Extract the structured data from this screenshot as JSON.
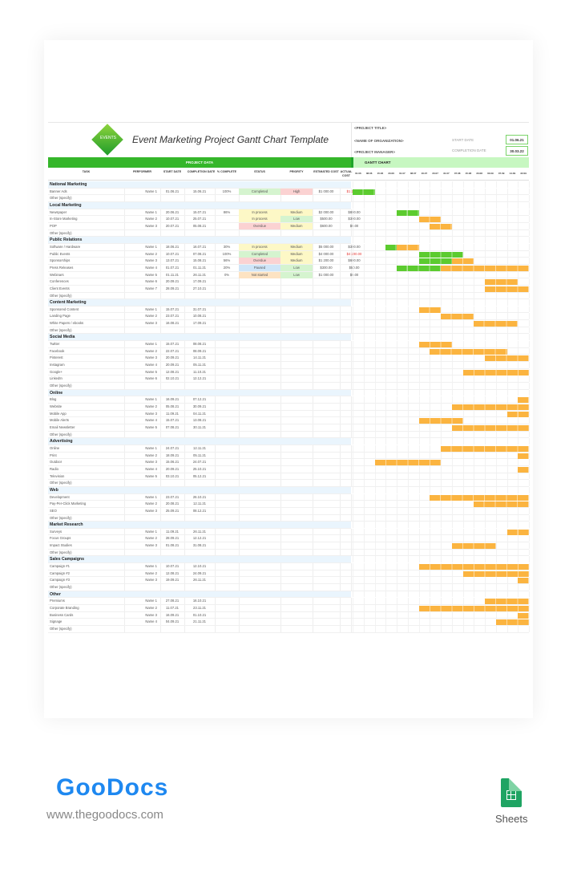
{
  "header": {
    "logo_text": "EVENTS",
    "title": "Event Marketing Project Gantt Chart Template",
    "project_title": "<PROJECT TITLE>",
    "organization": "<NAME OF ORGANIZATION>",
    "project_manager": "<PROJECT MANAGER>",
    "start_date_label": "START DATE",
    "start_date": "01.06.21",
    "completion_date_label": "COMPLETION DATE",
    "completion_date": "30.03.22"
  },
  "bands": {
    "project_data": "PROJECT DATA",
    "gantt_chart": "GANTT CHART"
  },
  "columns": [
    "TASK",
    "PERFORMER",
    "START DATE",
    "COMPLETION DATE",
    "% COMPLETE",
    "STATUS",
    "PRIORITY",
    "ESTIMATED COST",
    "ACTUAL COST"
  ],
  "gantt_dates": [
    "01.06",
    "08.06",
    "15.06",
    "23.06",
    "01.07",
    "08.07",
    "16.07",
    "23.07",
    "31.07",
    "07.08",
    "15.08",
    "23.08",
    "03.09",
    "07.09",
    "14.09",
    "22.09"
  ],
  "colors": {
    "green": "#5ccb2f",
    "orange": "#fbb440",
    "completed": "#d5f4cf",
    "in_process": "#fdf8c6",
    "overdue": "#fbd2d2",
    "paused": "#cfe5f8",
    "not_started": "#fde3c2",
    "high": "#fbd2d2",
    "medium": "#fdf8c6",
    "low": "#d5f4cf",
    "cat_bg": "#eaf5fd",
    "over_budget": "#e53935"
  },
  "rows": [
    {
      "type": "cat",
      "task": "National Marketing"
    },
    {
      "task": "Banner Ads",
      "performer": "Name 1",
      "start": "01.06.21",
      "end": "15.06.21",
      "pct": "100%",
      "status": "Completed",
      "priority": "High",
      "est": "$1 000.00",
      "act": "$1 200.00",
      "act_red": true,
      "bars": [
        [
          0,
          2,
          "green"
        ]
      ]
    },
    {
      "task": "Other (specify)"
    },
    {
      "type": "cat",
      "task": "Local Marketing"
    },
    {
      "task": "Newspaper",
      "performer": "Name 1",
      "start": "20.06.21",
      "end": "15.07.21",
      "pct": "86%",
      "status": "In process",
      "priority": "Medium",
      "est": "$2 000.00",
      "act": "$800.00",
      "bars": [
        [
          4,
          2,
          "green"
        ]
      ]
    },
    {
      "task": "In-Store Marketing",
      "performer": "Name 2",
      "start": "10.07.21",
      "end": "25.07.21",
      "status": "In process",
      "priority": "Low",
      "est": "$500.00",
      "act": "$300.00",
      "bars": [
        [
          6,
          2,
          "orange"
        ]
      ]
    },
    {
      "task": "POP",
      "performer": "Name 3",
      "start": "20.07.21",
      "end": "05.08.21",
      "status": "Overdue",
      "priority": "Medium",
      "est": "$600.00",
      "act": "$0.00",
      "bars": [
        [
          7,
          2,
          "orange"
        ]
      ]
    },
    {
      "task": "Other (specify)"
    },
    {
      "type": "cat",
      "task": "Public Relations"
    },
    {
      "task": "Software / Hardware",
      "performer": "Name 1",
      "start": "18.06.21",
      "end": "16.07.21",
      "pct": "30%",
      "status": "In process",
      "priority": "Medium",
      "est": "$5 000.00",
      "act": "$300.00",
      "bars": [
        [
          3,
          1,
          "green"
        ],
        [
          4,
          2,
          "orange"
        ]
      ]
    },
    {
      "task": "Public Events",
      "performer": "Name 2",
      "start": "10.07.21",
      "end": "07.08.21",
      "pct": "100%",
      "status": "Completed",
      "priority": "Medium",
      "est": "$4 000.00",
      "act": "$4 200.00",
      "act_red": true,
      "bars": [
        [
          6,
          4,
          "green"
        ]
      ]
    },
    {
      "task": "Sponsorships",
      "performer": "Name 3",
      "start": "13.07.21",
      "end": "15.08.21",
      "pct": "56%",
      "status": "Overdue",
      "priority": "Medium",
      "est": "$1 200.00",
      "act": "$600.00",
      "bars": [
        [
          6,
          3,
          "green"
        ],
        [
          9,
          2,
          "orange"
        ]
      ]
    },
    {
      "task": "Press Releases",
      "performer": "Name 4",
      "start": "01.07.21",
      "end": "01.11.21",
      "pct": "20%",
      "status": "Paused",
      "priority": "Low",
      "est": "$300.00",
      "act": "$50.00",
      "bars": [
        [
          4,
          4,
          "green"
        ],
        [
          8,
          8,
          "orange"
        ]
      ]
    },
    {
      "task": "Webinars",
      "performer": "Name 5",
      "start": "01.11.21",
      "end": "26.11.21",
      "pct": "0%",
      "status": "Not started",
      "priority": "Low",
      "est": "$1 000.00",
      "act": "$0.00"
    },
    {
      "task": "Conferences",
      "performer": "Name 6",
      "start": "20.09.21",
      "end": "17.09.21",
      "bars": [
        [
          12,
          3,
          "orange"
        ]
      ]
    },
    {
      "task": "Client Events",
      "performer": "Name 7",
      "start": "28.09.21",
      "end": "27.10.21",
      "bars": [
        [
          12,
          4,
          "orange"
        ]
      ]
    },
    {
      "task": "Other (specify)"
    },
    {
      "type": "cat",
      "task": "Content Marketing"
    },
    {
      "task": "Sponsored Content",
      "performer": "Name 1",
      "start": "15.07.21",
      "end": "31.07.21",
      "bars": [
        [
          6,
          2,
          "orange"
        ]
      ]
    },
    {
      "task": "Landing Page",
      "performer": "Name 2",
      "start": "23.07.21",
      "end": "10.08.21",
      "bars": [
        [
          8,
          3,
          "orange"
        ]
      ]
    },
    {
      "task": "White Papers / ebooks",
      "performer": "Name 3",
      "start": "16.08.21",
      "end": "17.09.21",
      "bars": [
        [
          11,
          4,
          "orange"
        ]
      ]
    },
    {
      "task": "Other (specify)"
    },
    {
      "type": "cat",
      "task": "Social Media"
    },
    {
      "task": "Twitter",
      "performer": "Name 1",
      "start": "15.07.21",
      "end": "08.08.21",
      "bars": [
        [
          6,
          3,
          "orange"
        ]
      ]
    },
    {
      "task": "Facebook",
      "performer": "Name 2",
      "start": "22.07.21",
      "end": "08.09.21",
      "bars": [
        [
          7,
          7,
          "orange"
        ]
      ]
    },
    {
      "task": "Pinterest",
      "performer": "Name 3",
      "start": "20.09.21",
      "end": "14.11.21",
      "bars": [
        [
          12,
          4,
          "orange"
        ]
      ]
    },
    {
      "task": "Instagram",
      "performer": "Name 4",
      "start": "20.09.21",
      "end": "05.11.21"
    },
    {
      "task": "Google+",
      "performer": "Name 5",
      "start": "12.08.21",
      "end": "11.10.21",
      "bars": [
        [
          10,
          6,
          "orange"
        ]
      ]
    },
    {
      "task": "LinkedIn",
      "performer": "Name 6",
      "start": "02.10.21",
      "end": "12.12.21"
    },
    {
      "task": "Other (specify)"
    },
    {
      "type": "cat",
      "task": "Online"
    },
    {
      "task": "Blog",
      "performer": "Name 1",
      "start": "16.09.21",
      "end": "07.12.21",
      "bars": [
        [
          15,
          1,
          "orange"
        ]
      ]
    },
    {
      "task": "Website",
      "performer": "Name 2",
      "start": "05.08.21",
      "end": "30.09.21",
      "bars": [
        [
          9,
          7,
          "orange"
        ]
      ]
    },
    {
      "task": "Mobile App",
      "performer": "Name 3",
      "start": "11.09.21",
      "end": "04.11.21",
      "bars": [
        [
          14,
          2,
          "orange"
        ]
      ]
    },
    {
      "task": "Mobile Alerts",
      "performer": "Name 4",
      "start": "15.07.21",
      "end": "13.08.21",
      "bars": [
        [
          6,
          4,
          "orange"
        ]
      ]
    },
    {
      "task": "Email Newsletter",
      "performer": "Name 5",
      "start": "07.08.21",
      "end": "30.11.21",
      "bars": [
        [
          9,
          7,
          "orange"
        ]
      ]
    },
    {
      "task": "Other (specify)"
    },
    {
      "type": "cat",
      "task": "Advertising"
    },
    {
      "task": "Online",
      "performer": "Name 1",
      "start": "24.07.21",
      "end": "12.11.21",
      "bars": [
        [
          8,
          8,
          "orange"
        ]
      ]
    },
    {
      "task": "Print",
      "performer": "Name 2",
      "start": "18.09.21",
      "end": "05.11.21",
      "bars": [
        [
          15,
          1,
          "orange"
        ]
      ]
    },
    {
      "task": "Outdoor",
      "performer": "Name 3",
      "start": "15.06.21",
      "end": "24.07.21",
      "bars": [
        [
          2,
          6,
          "orange"
        ]
      ]
    },
    {
      "task": "Radio",
      "performer": "Name 4",
      "start": "20.09.21",
      "end": "25.10.21",
      "bars": [
        [
          15,
          1,
          "orange"
        ]
      ]
    },
    {
      "task": "Television",
      "performer": "Name 5",
      "start": "03.10.21",
      "end": "05.12.21"
    },
    {
      "task": "Other (specify)"
    },
    {
      "type": "cat",
      "task": "Web"
    },
    {
      "task": "Development",
      "performer": "Name 1",
      "start": "23.07.21",
      "end": "26.10.21",
      "bars": [
        [
          7,
          9,
          "orange"
        ]
      ]
    },
    {
      "task": "Pay-Per-Click Marketing",
      "performer": "Name 2",
      "start": "20.08.21",
      "end": "12.11.21",
      "bars": [
        [
          11,
          5,
          "orange"
        ]
      ]
    },
    {
      "task": "SEO",
      "performer": "Name 3",
      "start": "25.09.21",
      "end": "08.12.21"
    },
    {
      "task": "Other (specify)"
    },
    {
      "type": "cat",
      "task": "Market Research"
    },
    {
      "task": "Surveys",
      "performer": "Name 1",
      "start": "11.09.21",
      "end": "26.11.21",
      "bars": [
        [
          14,
          2,
          "orange"
        ]
      ]
    },
    {
      "task": "Focus Groups",
      "performer": "Name 2",
      "start": "28.09.21",
      "end": "12.12.21"
    },
    {
      "task": "Impact Studies",
      "performer": "Name 3",
      "start": "01.08.21",
      "end": "31.08.21",
      "bars": [
        [
          9,
          4,
          "orange"
        ]
      ]
    },
    {
      "task": "Other (specify)"
    },
    {
      "type": "cat",
      "task": "Sales Campaigns"
    },
    {
      "task": "Campaign #1",
      "performer": "Name 1",
      "start": "10.07.21",
      "end": "12.10.21",
      "bars": [
        [
          6,
          10,
          "orange"
        ]
      ]
    },
    {
      "task": "Campaign #2",
      "performer": "Name 2",
      "start": "12.08.21",
      "end": "24.09.21",
      "bars": [
        [
          10,
          6,
          "orange"
        ]
      ]
    },
    {
      "task": "Campaign #3",
      "performer": "Name 3",
      "start": "19.09.21",
      "end": "26.11.21",
      "bars": [
        [
          15,
          1,
          "orange"
        ]
      ]
    },
    {
      "task": "Other (specify)"
    },
    {
      "type": "cat",
      "task": "Other"
    },
    {
      "task": "Premiums",
      "performer": "Name 1",
      "start": "27.08.21",
      "end": "16.10.21",
      "bars": [
        [
          12,
          4,
          "orange"
        ]
      ]
    },
    {
      "task": "Corporate Branding",
      "performer": "Name 2",
      "start": "11.07.21",
      "end": "23.11.21",
      "bars": [
        [
          6,
          10,
          "orange"
        ]
      ]
    },
    {
      "task": "Business Cards",
      "performer": "Name 3",
      "start": "16.09.21",
      "end": "01.10.21",
      "bars": [
        [
          15,
          1,
          "orange"
        ]
      ]
    },
    {
      "task": "Signage",
      "performer": "Name 4",
      "start": "04.09.21",
      "end": "21.11.21",
      "bars": [
        [
          13,
          3,
          "orange"
        ]
      ]
    },
    {
      "task": "Other (specify)"
    }
  ],
  "footer": {
    "brand": "GooDocs",
    "url": "www.thegoodocs.com",
    "app_label": "Sheets"
  }
}
